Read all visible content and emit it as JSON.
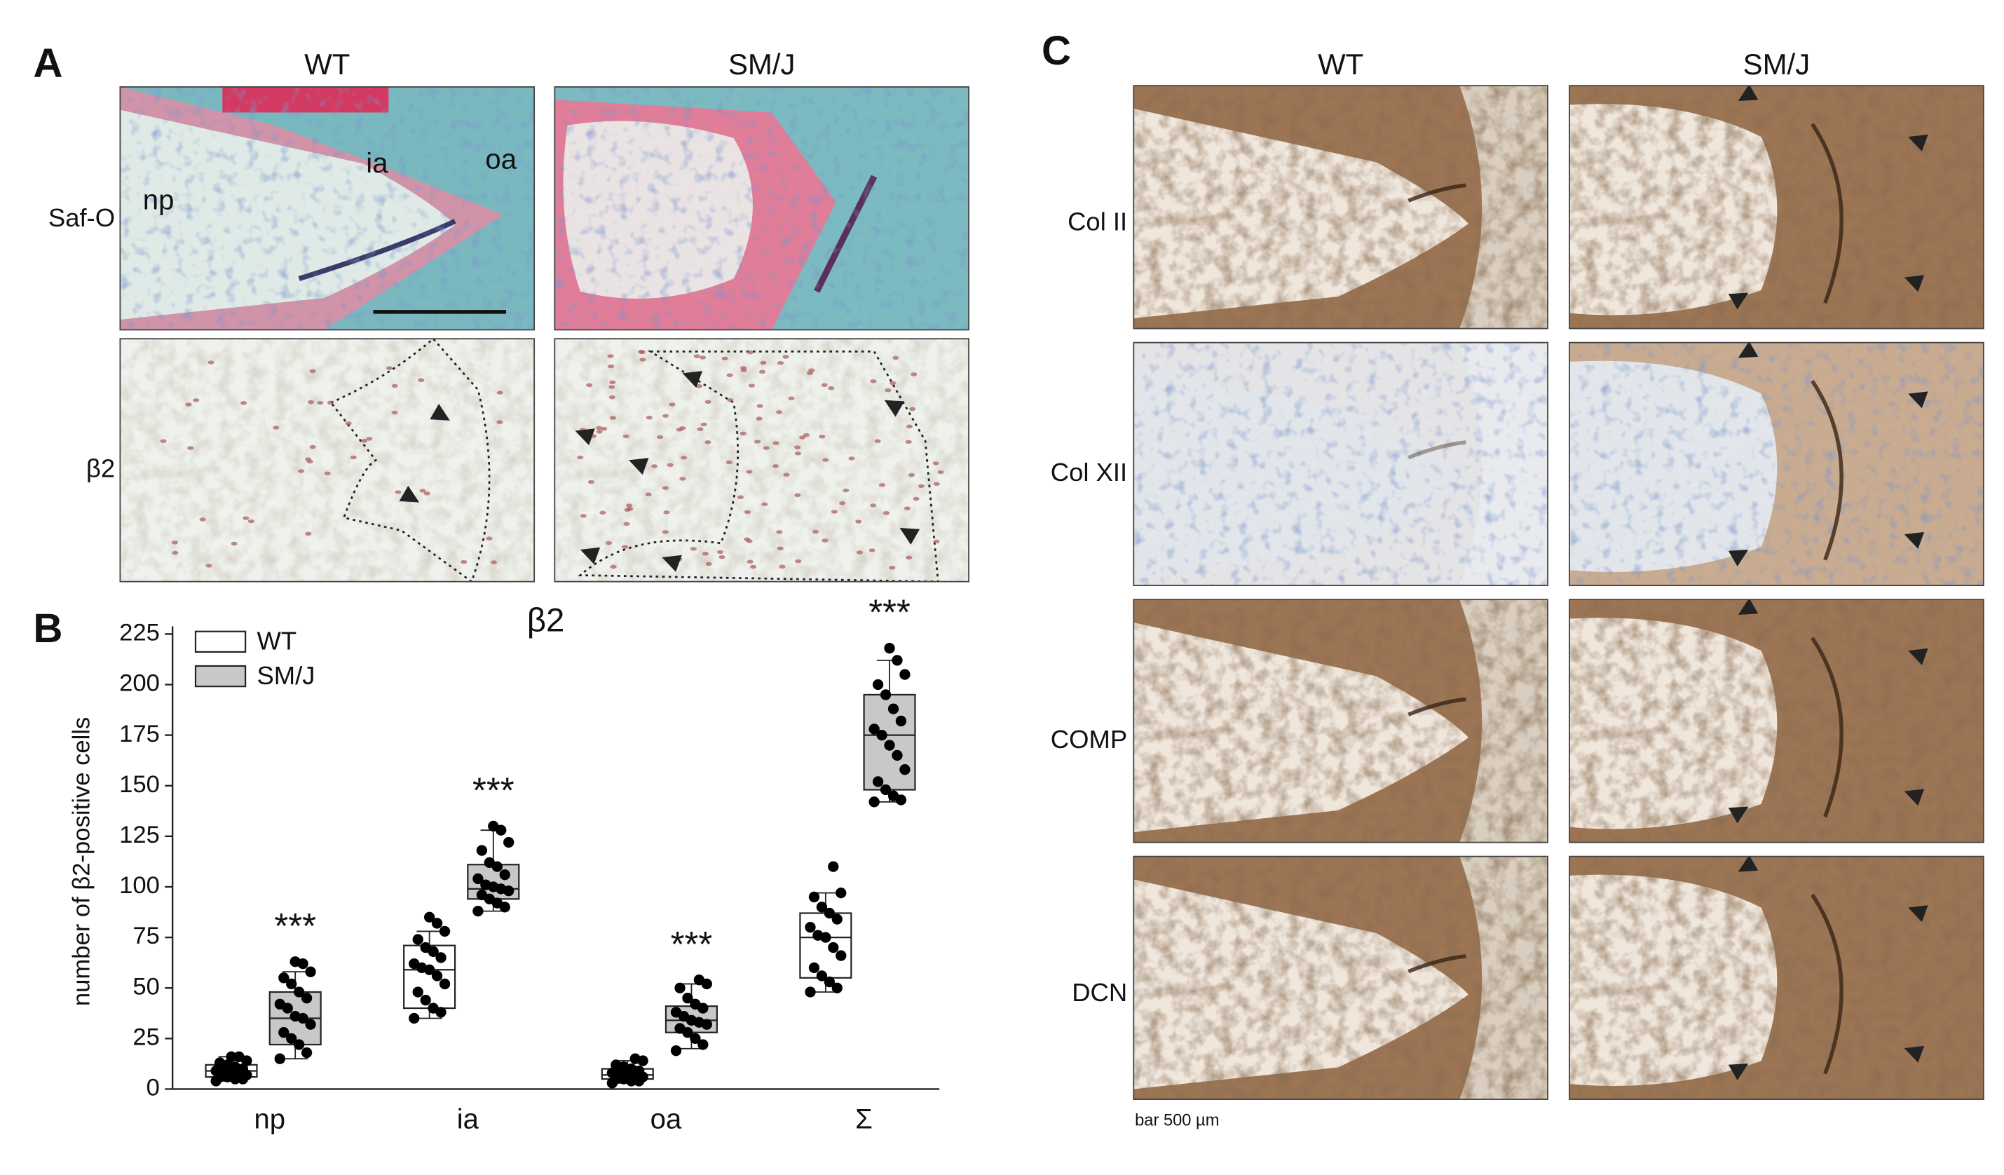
{
  "figure": {
    "panel_a": {
      "label": "A",
      "columns": [
        "WT",
        "SM/J"
      ],
      "rows": [
        "Saf-O",
        "β2"
      ],
      "annotations": [
        "np",
        "ia",
        "oa"
      ]
    },
    "panel_b": {
      "label": "B"
    },
    "panel_c": {
      "label": "C",
      "columns": [
        "WT",
        "SM/J"
      ],
      "rows": [
        "Col II",
        "Col XII",
        "COMP",
        "DCN"
      ],
      "scale_note": "bar 500 µm"
    }
  },
  "chart_data": {
    "type": "box",
    "title": "β2",
    "y_label": "number of β2-positive cells",
    "categories": [
      "np",
      "ia",
      "oa",
      "Σ"
    ],
    "ylim": [
      0,
      225
    ],
    "yticks": [
      0,
      25,
      50,
      75,
      100,
      125,
      150,
      175,
      200,
      225
    ],
    "legend": "top-left",
    "series": [
      {
        "name": "WT",
        "color": "#ffffff",
        "boxes": [
          {
            "min": 4,
            "q1": 6,
            "median": 9,
            "q3": 12,
            "max": 16,
            "points": [
              4,
              5,
              5,
              6,
              6,
              7,
              8,
              8,
              9,
              9,
              10,
              11,
              12,
              13,
              14,
              16,
              16
            ]
          },
          {
            "min": 35,
            "q1": 40,
            "median": 59,
            "q3": 71,
            "max": 78,
            "points": [
              35,
              38,
              40,
              44,
              48,
              52,
              56,
              59,
              60,
              62,
              65,
              68,
              70,
              74,
              78,
              82,
              85
            ]
          },
          {
            "min": 3,
            "q1": 5,
            "median": 7,
            "q3": 10,
            "max": 14,
            "points": [
              3,
              4,
              4,
              5,
              5,
              6,
              7,
              7,
              8,
              8,
              9,
              10,
              11,
              12,
              14,
              15
            ]
          },
          {
            "min": 48,
            "q1": 55,
            "median": 75,
            "q3": 87,
            "max": 97,
            "points": [
              48,
              50,
              53,
              56,
              60,
              66,
              70,
              75,
              76,
              80,
              84,
              87,
              90,
              95,
              97,
              110
            ]
          }
        ]
      },
      {
        "name": "SM/J",
        "color": "#c8c8c8",
        "labels": [
          "***",
          "***",
          "***",
          "***"
        ],
        "boxes": [
          {
            "min": 15,
            "q1": 22,
            "median": 35,
            "q3": 48,
            "max": 58,
            "points": [
              15,
              18,
              22,
              25,
              28,
              32,
              35,
              36,
              40,
              42,
              45,
              48,
              52,
              55,
              58,
              62,
              63
            ]
          },
          {
            "min": 88,
            "q1": 94,
            "median": 99,
            "q3": 111,
            "max": 128,
            "points": [
              88,
              90,
              92,
              94,
              96,
              98,
              99,
              100,
              101,
              104,
              106,
              110,
              112,
              118,
              122,
              128,
              130
            ]
          },
          {
            "min": 20,
            "q1": 28,
            "median": 34,
            "q3": 41,
            "max": 52,
            "points": [
              19,
              22,
              25,
              28,
              30,
              32,
              33,
              34,
              36,
              38,
              40,
              42,
              45,
              50,
              52,
              54
            ]
          },
          {
            "min": 142,
            "q1": 148,
            "median": 175,
            "q3": 195,
            "max": 212,
            "points": [
              142,
              143,
              145,
              148,
              152,
              158,
              165,
              170,
              175,
              178,
              182,
              188,
              195,
              200,
              205,
              212,
              218
            ]
          }
        ]
      }
    ]
  }
}
